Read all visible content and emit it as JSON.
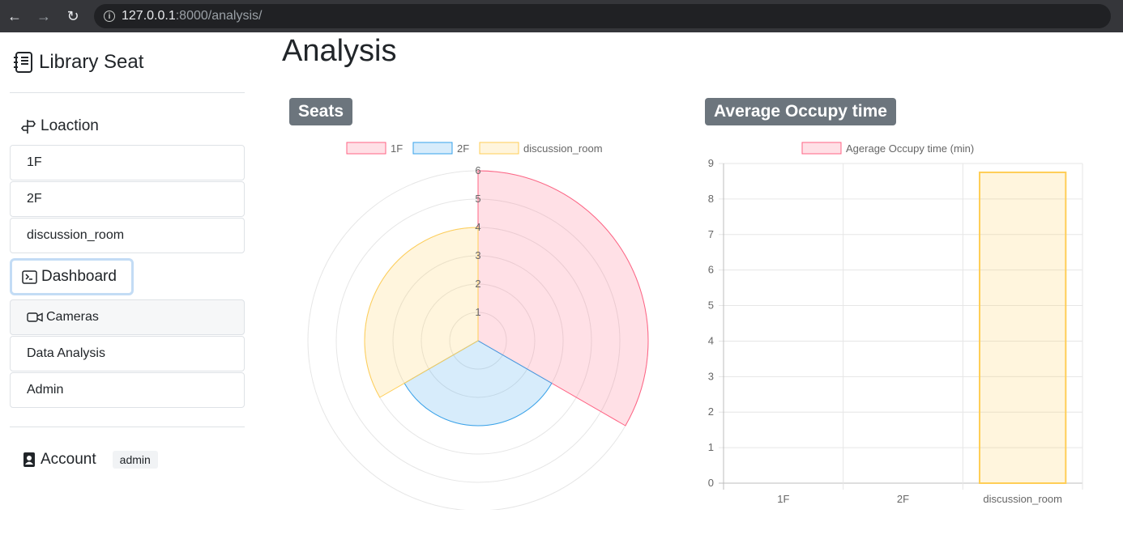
{
  "browser": {
    "host": "127.0.0.1",
    "path": ":8000/analysis/"
  },
  "sidebar": {
    "brand": "Library Seat",
    "location_title": "Loaction",
    "locations": [
      "1F",
      "2F",
      "discussion_room"
    ],
    "dashboard_label": "Dashboard",
    "dashboard_items": [
      {
        "label": "Cameras",
        "icon": "camera-icon"
      },
      {
        "label": "Data Analysis"
      },
      {
        "label": "Admin"
      }
    ],
    "account_label": "Account",
    "account_user": "admin"
  },
  "main": {
    "title": "Analysis",
    "seats_header": "Seats",
    "occupy_header": "Average Occupy time"
  },
  "colors": {
    "pink_fill": "rgba(255,99,132,0.2)",
    "pink_line": "#ff6384",
    "blue_fill": "rgba(54,162,235,0.2)",
    "blue_line": "#36a2eb",
    "yellow_fill": "rgba(255,206,86,0.2)",
    "yellow_line": "#ffce56",
    "header_bg": "#6c757d"
  },
  "chart_data": [
    {
      "type": "polarArea",
      "title": "Seats",
      "categories": [
        "1F",
        "2F",
        "discussion_room"
      ],
      "values": [
        6,
        3,
        4
      ],
      "r_ticks": [
        "1",
        "2",
        "3",
        "4",
        "5",
        "6"
      ],
      "rlim": [
        0,
        6
      ]
    },
    {
      "type": "bar",
      "title": "Average Occupy time",
      "legend": "Agerage Occupy time (min)",
      "categories": [
        "1F",
        "2F",
        "discussion_room"
      ],
      "values": [
        0,
        0,
        8.75
      ],
      "y_ticks": [
        "0",
        "1",
        "2",
        "3",
        "4",
        "5",
        "6",
        "7",
        "8",
        "9"
      ],
      "ylim": [
        0,
        9
      ]
    }
  ]
}
